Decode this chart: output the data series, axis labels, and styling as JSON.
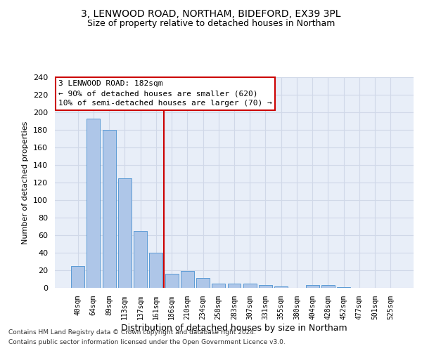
{
  "title_line1": "3, LENWOOD ROAD, NORTHAM, BIDEFORD, EX39 3PL",
  "title_line2": "Size of property relative to detached houses in Northam",
  "xlabel": "Distribution of detached houses by size in Northam",
  "ylabel": "Number of detached properties",
  "footer_line1": "Contains HM Land Registry data © Crown copyright and database right 2024.",
  "footer_line2": "Contains public sector information licensed under the Open Government Licence v3.0.",
  "bar_labels": [
    "40sqm",
    "64sqm",
    "89sqm",
    "113sqm",
    "137sqm",
    "161sqm",
    "186sqm",
    "210sqm",
    "234sqm",
    "258sqm",
    "283sqm",
    "307sqm",
    "331sqm",
    "355sqm",
    "380sqm",
    "404sqm",
    "428sqm",
    "452sqm",
    "477sqm",
    "501sqm",
    "525sqm"
  ],
  "bar_values": [
    25,
    193,
    180,
    125,
    65,
    40,
    16,
    19,
    11,
    5,
    5,
    5,
    3,
    2,
    0,
    3,
    3,
    1,
    0,
    0,
    0
  ],
  "bar_color": "#aec6e8",
  "bar_edge_color": "#5b9bd5",
  "vline_x": 5.5,
  "vline_color": "#cc0000",
  "annotation_line1": "3 LENWOOD ROAD: 182sqm",
  "annotation_line2": "← 90% of detached houses are smaller (620)",
  "annotation_line3": "10% of semi-detached houses are larger (70) →",
  "annotation_box_color": "#ffffff",
  "annotation_box_edge": "#cc0000",
  "grid_color": "#d0d8e8",
  "background_color": "#e8eef8",
  "ylim": [
    0,
    240
  ],
  "yticks": [
    0,
    20,
    40,
    60,
    80,
    100,
    120,
    140,
    160,
    180,
    200,
    220,
    240
  ]
}
